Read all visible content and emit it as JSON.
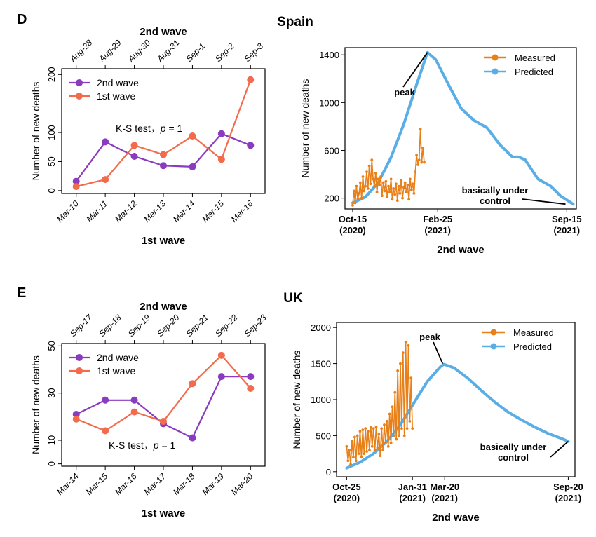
{
  "panels": {
    "d": {
      "letter": "D",
      "country": "Spain"
    },
    "e": {
      "letter": "E",
      "country": "UK"
    }
  },
  "colors": {
    "second_wave": "#8a3bbf",
    "first_wave": "#f26b4c",
    "measured": "#e8801a",
    "predicted": "#5aaee6",
    "axis": "#000000"
  },
  "chart_data": [
    {
      "id": "spain-waves",
      "type": "line",
      "title": "",
      "top_axis_label": "2nd wave",
      "top_categories": [
        "Aug-28",
        "Aug-29",
        "Aug-30",
        "Aug-31",
        "Sep-1",
        "Sep-2",
        "Sep-3"
      ],
      "categories": [
        "Mar-10",
        "Mar-11",
        "Mar-12",
        "Mar-13",
        "Mar-14",
        "Mar-15",
        "Mar-16"
      ],
      "xlabel": "1st wave",
      "ylabel": "Number of new deaths",
      "ylim": [
        -5,
        210
      ],
      "yticks": [
        0,
        50,
        100,
        200
      ],
      "legend": "top-left",
      "annotation": {
        "prefix": "K-S test，",
        "italic": "p",
        "suffix": " = 1"
      },
      "series": [
        {
          "name": "2nd wave",
          "color_key": "second_wave",
          "values": [
            16,
            84,
            59,
            43,
            41,
            98,
            78
          ]
        },
        {
          "name": "1st wave",
          "color_key": "first_wave",
          "values": [
            7,
            19,
            78,
            62,
            94,
            54,
            191
          ]
        }
      ]
    },
    {
      "id": "spain-prediction",
      "type": "line",
      "title": "",
      "xlabel": "2nd wave",
      "ylabel": "Number of new deaths",
      "xlim": [
        -12,
        350
      ],
      "ylim": [
        110,
        1460
      ],
      "yticks": [
        200,
        600,
        1000,
        1400
      ],
      "xticks": [
        {
          "x": 0,
          "label": [
            "Oct-15",
            "(2020)"
          ]
        },
        {
          "x": 133,
          "label": [
            "Feb-25",
            "(2021)"
          ]
        },
        {
          "x": 335,
          "label": [
            "Sep-15",
            "(2021)"
          ]
        }
      ],
      "legend": "top-right",
      "annotations": [
        {
          "text": [
            "peak"
          ],
          "x": 117,
          "y": 1420
        },
        {
          "text": [
            "basically under",
            "control"
          ],
          "x": 333,
          "y": 150
        }
      ],
      "predicted": {
        "name": "Predicted",
        "x": [
          0,
          20,
          40,
          60,
          80,
          100,
          117,
          130,
          150,
          170,
          190,
          210,
          230,
          250,
          260,
          270,
          290,
          310,
          325,
          345
        ],
        "y": [
          160,
          210,
          330,
          540,
          820,
          1150,
          1420,
          1360,
          1150,
          950,
          850,
          790,
          650,
          545,
          545,
          520,
          360,
          300,
          220,
          150
        ]
      },
      "measured": {
        "name": "Measured",
        "x": [
          0,
          2,
          4,
          6,
          8,
          10,
          12,
          14,
          16,
          18,
          20,
          22,
          24,
          26,
          28,
          30,
          32,
          34,
          36,
          38,
          40,
          42,
          44,
          46,
          48,
          50,
          52,
          54,
          56,
          58,
          60,
          62,
          64,
          66,
          68,
          70,
          72,
          74,
          76,
          78,
          80,
          82,
          84,
          86,
          88,
          90,
          92,
          94,
          96,
          98,
          100,
          102,
          104,
          106,
          108,
          110,
          112
        ],
        "y": [
          140,
          260,
          160,
          300,
          190,
          240,
          330,
          200,
          380,
          260,
          300,
          420,
          280,
          470,
          320,
          520,
          360,
          300,
          410,
          250,
          360,
          310,
          380,
          220,
          330,
          260,
          340,
          210,
          300,
          250,
          360,
          190,
          280,
          230,
          320,
          180,
          300,
          240,
          350,
          200,
          290,
          330,
          250,
          310,
          190,
          360,
          270,
          320,
          240,
          420,
          560,
          480,
          520,
          780,
          500,
          620,
          500
        ]
      }
    },
    {
      "id": "uk-waves",
      "type": "line",
      "title": "",
      "top_axis_label": "2nd wave",
      "top_categories": [
        "Sep-17",
        "Sep-18",
        "Sep-19",
        "Sep-20",
        "Sep-21",
        "Sep-22",
        "Sep-23"
      ],
      "categories": [
        "Mar-14",
        "Mar-15",
        "Mar-16",
        "Mar-17",
        "Mar-18",
        "Mar-19",
        "Mar-20"
      ],
      "xlabel": "1st wave",
      "ylabel": "Number of new deaths",
      "ylim": [
        -1,
        51
      ],
      "yticks": [
        0,
        10,
        30,
        50
      ],
      "legend": "top-left",
      "annotation": {
        "prefix": "K-S test，",
        "italic": "p",
        "suffix": " = 1"
      },
      "series": [
        {
          "name": "2nd wave",
          "color_key": "second_wave",
          "values": [
            21,
            27,
            27,
            17,
            11,
            37,
            37
          ]
        },
        {
          "name": "1st wave",
          "color_key": "first_wave",
          "values": [
            19,
            14,
            22,
            18,
            34,
            46,
            32
          ]
        }
      ]
    },
    {
      "id": "uk-prediction",
      "type": "line",
      "title": "",
      "xlabel": "2nd wave",
      "ylabel": "Number of new deaths",
      "xlim": [
        -15,
        340
      ],
      "ylim": [
        -70,
        2070
      ],
      "yticks": [
        0,
        500,
        1000,
        1500,
        2000
      ],
      "xticks": [
        {
          "x": 0,
          "label": [
            "Oct-25",
            "(2020)"
          ]
        },
        {
          "x": 98,
          "label": [
            "Jan-31",
            "(2021)"
          ]
        },
        {
          "x": 146,
          "label": [
            "Mar-20",
            "(2021)"
          ]
        },
        {
          "x": 330,
          "label": [
            "Sep-20",
            "(2021)"
          ]
        }
      ],
      "legend": "top-right",
      "annotations": [
        {
          "text": [
            "peak"
          ],
          "x": 143,
          "y": 1500
        },
        {
          "text": [
            "basically under",
            "control"
          ],
          "x": 330,
          "y": 420
        }
      ],
      "predicted": {
        "name": "Predicted",
        "x": [
          0,
          20,
          40,
          60,
          80,
          100,
          120,
          140,
          145,
          160,
          180,
          200,
          220,
          240,
          260,
          280,
          300,
          320,
          330
        ],
        "y": [
          50,
          130,
          250,
          420,
          650,
          950,
          1250,
          1460,
          1490,
          1440,
          1300,
          1130,
          970,
          830,
          720,
          620,
          530,
          460,
          420
        ]
      },
      "measured": {
        "name": "Measured",
        "x": [
          0,
          2,
          4,
          6,
          8,
          10,
          12,
          14,
          16,
          18,
          20,
          22,
          24,
          26,
          28,
          30,
          32,
          34,
          36,
          38,
          40,
          42,
          44,
          46,
          48,
          50,
          52,
          54,
          56,
          58,
          60,
          62,
          64,
          66,
          68,
          70,
          72,
          74,
          76,
          78,
          80,
          82,
          84,
          86,
          88,
          90,
          92,
          94,
          96,
          98
        ],
        "y": [
          350,
          150,
          300,
          100,
          420,
          200,
          480,
          150,
          500,
          250,
          560,
          200,
          580,
          250,
          600,
          280,
          560,
          300,
          620,
          350,
          600,
          300,
          620,
          330,
          520,
          220,
          600,
          300,
          650,
          400,
          700,
          350,
          800,
          400,
          900,
          500,
          1100,
          450,
          1400,
          500,
          1500,
          600,
          1650,
          500,
          1800,
          600,
          1750,
          700,
          1300,
          600
        ]
      }
    }
  ]
}
